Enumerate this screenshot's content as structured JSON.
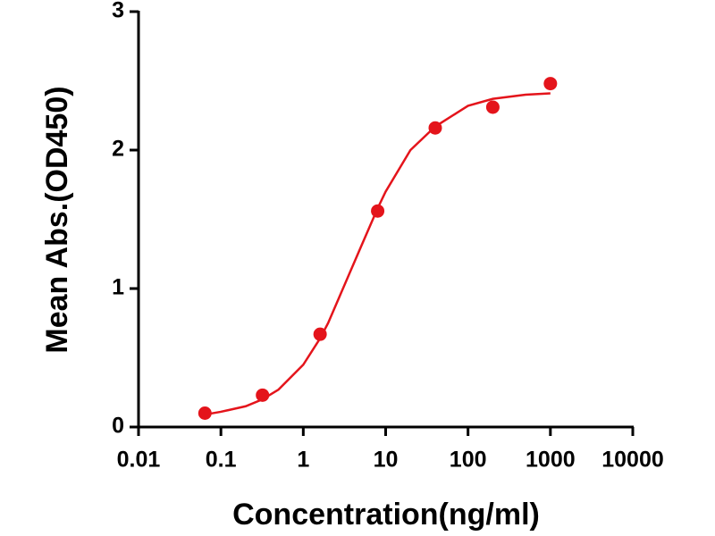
{
  "chart_data": {
    "type": "scatter",
    "xlabel": "Concentration(ng/ml)",
    "ylabel": "Mean Abs.(OD450)",
    "xscale": "log",
    "xlim": [
      0.01,
      10000
    ],
    "xticks": [
      0.01,
      0.1,
      1,
      10,
      100,
      1000,
      10000
    ],
    "ylim": [
      0,
      3
    ],
    "yticks": [
      0,
      1,
      2,
      3
    ],
    "color": "#e4141b",
    "points": {
      "x": [
        0.064,
        0.32,
        1.6,
        8,
        40,
        200,
        1000
      ],
      "values": [
        0.1,
        0.23,
        0.67,
        1.56,
        2.16,
        2.31,
        2.48
      ]
    },
    "curve": {
      "x": [
        0.064,
        0.1,
        0.2,
        0.32,
        0.5,
        1,
        1.6,
        2,
        5,
        8,
        10,
        20,
        40,
        100,
        200,
        500,
        1000
      ],
      "values": [
        0.09,
        0.11,
        0.15,
        0.2,
        0.27,
        0.45,
        0.64,
        0.75,
        1.3,
        1.58,
        1.7,
        2.0,
        2.17,
        2.32,
        2.37,
        2.4,
        2.41
      ]
    }
  }
}
